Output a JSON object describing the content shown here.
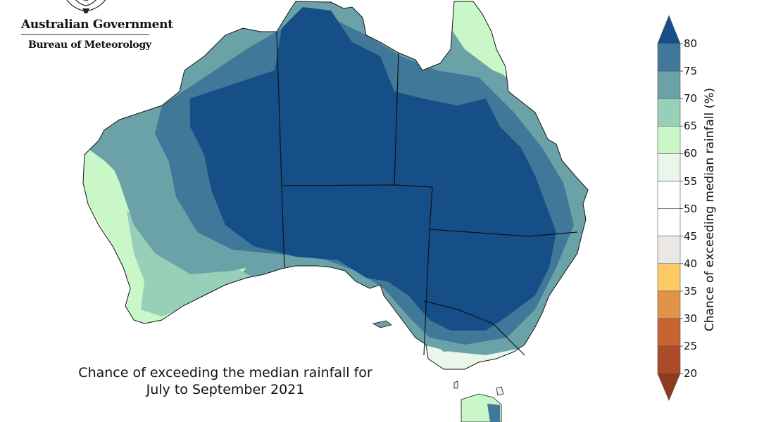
{
  "logo": {
    "government": "Australian Government",
    "bureau": "Bureau of Meteorology"
  },
  "caption": {
    "line1": "Chance of exceeding the median rainfall for",
    "line2": "July to September 2021"
  },
  "colorbar": {
    "label": "Chance of exceeding median rainfall (%)",
    "ticks": [
      "80",
      "75",
      "70",
      "65",
      "60",
      "55",
      "50",
      "45",
      "40",
      "35",
      "30",
      "25",
      "20"
    ],
    "bins": [
      {
        "range": "75-80",
        "color": "#3f7899"
      },
      {
        "range": "70-75",
        "color": "#6ba2a8"
      },
      {
        "range": "65-70",
        "color": "#98cfb8"
      },
      {
        "range": "60-65",
        "color": "#c9f7c8"
      },
      {
        "range": "55-60",
        "color": "#e9f6e9"
      },
      {
        "range": "50-55",
        "color": "#ffffff"
      },
      {
        "range": "45-50",
        "color": "#ffffff"
      },
      {
        "range": "40-45",
        "color": "#ebe7e4"
      },
      {
        "range": "35-40",
        "color": "#fdca66"
      },
      {
        "range": "30-35",
        "color": "#e09447"
      },
      {
        "range": "25-30",
        "color": "#c96331"
      },
      {
        "range": "20-25",
        "color": "#ad4a27"
      }
    ],
    "over_color": "#164f87",
    "under_color": "#8f3a20"
  },
  "map_colors": {
    "very_high": "#164f87",
    "high": "#3f7899",
    "mid_high": "#6ba2a8",
    "mid": "#98cfb8",
    "low_mid": "#c9f7c8",
    "near_neutral": "#e9f6e9",
    "neutral": "#ffffff"
  }
}
